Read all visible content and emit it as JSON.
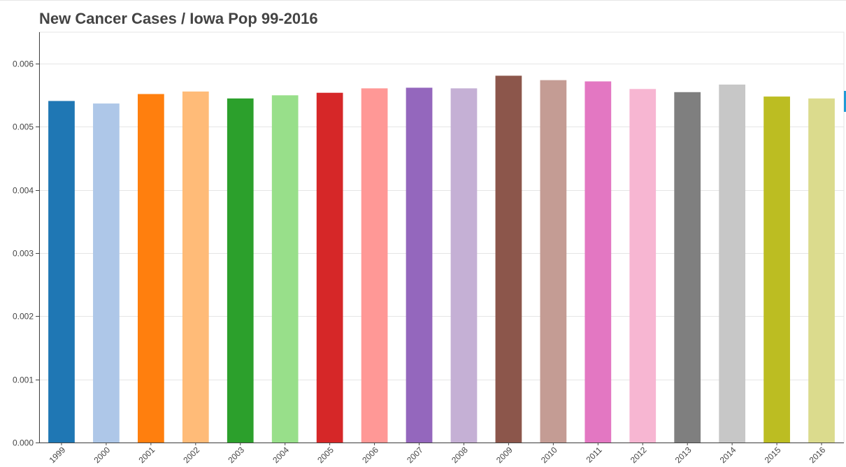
{
  "chart_data": {
    "type": "bar",
    "title": "New Cancer Cases / Iowa Pop 99-2016",
    "xlabel": "",
    "ylabel": "",
    "categories": [
      "1999",
      "2000",
      "2001",
      "2002",
      "2003",
      "2004",
      "2005",
      "2006",
      "2007",
      "2008",
      "2009",
      "2010",
      "2011",
      "2012",
      "2013",
      "2014",
      "2015",
      "2016"
    ],
    "values": [
      0.00541,
      0.00537,
      0.00552,
      0.00556,
      0.00545,
      0.0055,
      0.00554,
      0.00561,
      0.00562,
      0.00561,
      0.00581,
      0.00574,
      0.00572,
      0.0056,
      0.00555,
      0.00567,
      0.00548,
      0.00545
    ],
    "colors": [
      "#1f77b4",
      "#aec7e8",
      "#ff7f0e",
      "#ffbb78",
      "#2ca02c",
      "#98df8a",
      "#d62728",
      "#ff9896",
      "#9467bd",
      "#c5b0d5",
      "#8c564b",
      "#c49c94",
      "#e377c2",
      "#f7b6d2",
      "#7f7f7f",
      "#c7c7c7",
      "#bcbd22",
      "#dbdb8d"
    ],
    "y_ticks": [
      "0.000",
      "0.001",
      "0.002",
      "0.003",
      "0.004",
      "0.005",
      "0.006"
    ],
    "ylim": [
      0,
      0.0065
    ],
    "grid": true,
    "legend": "none"
  }
}
